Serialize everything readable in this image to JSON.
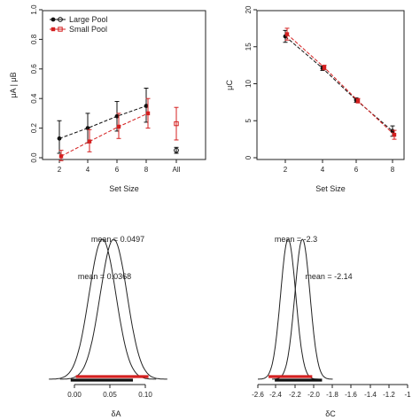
{
  "chart_data": [
    {
      "type": "line",
      "panel": "top-left",
      "xlabel": "Set Size",
      "ylabel": "μA | μB",
      "x_ticks": [
        "2",
        "4",
        "6",
        "8",
        "All"
      ],
      "y_ticks": [
        "0.0",
        "0.2",
        "0.4",
        "0.6",
        "0.8",
        "1.0"
      ],
      "ylim": [
        0,
        1
      ],
      "legend_position": "top-left",
      "series": [
        {
          "name": "Large Pool",
          "color": "#111111",
          "x": [
            2,
            4,
            6,
            8
          ],
          "y": [
            0.13,
            0.2,
            0.28,
            0.35
          ],
          "err_low": [
            0.03,
            0.1,
            0.18,
            0.24
          ],
          "err_high": [
            0.25,
            0.3,
            0.38,
            0.47
          ],
          "all": {
            "y": 0.05,
            "err_low": 0.03,
            "err_high": 0.07
          }
        },
        {
          "name": "Small Pool",
          "color": "#d42020",
          "x": [
            2,
            4,
            6,
            8
          ],
          "y": [
            0.01,
            0.11,
            0.21,
            0.3
          ],
          "err_low": [
            -0.02,
            0.04,
            0.13,
            0.2
          ],
          "err_high": [
            0.05,
            0.19,
            0.3,
            0.4
          ],
          "all": {
            "y": 0.23,
            "err_low": 0.12,
            "err_high": 0.34
          }
        }
      ]
    },
    {
      "type": "line",
      "panel": "top-right",
      "xlabel": "Set Size",
      "ylabel": "μC",
      "x_ticks": [
        "2",
        "4",
        "6",
        "8"
      ],
      "y_ticks": [
        "0",
        "5",
        "10",
        "15",
        "20"
      ],
      "ylim": [
        0,
        20
      ],
      "series": [
        {
          "color": "#111111",
          "x": [
            2,
            4,
            6,
            8
          ],
          "y": [
            16.4,
            12.1,
            7.8,
            3.6
          ],
          "err_low": [
            15.6,
            11.8,
            7.5,
            2.9
          ],
          "err_high": [
            17.2,
            12.4,
            8.1,
            4.3
          ]
        },
        {
          "color": "#d42020",
          "x": [
            2,
            4,
            6,
            8
          ],
          "y": [
            16.7,
            12.2,
            7.7,
            3.1
          ],
          "err_low": [
            15.9,
            11.9,
            7.4,
            2.5
          ],
          "err_high": [
            17.5,
            12.5,
            8.0,
            3.7
          ]
        }
      ]
    },
    {
      "type": "density",
      "panel": "bottom-left",
      "xlabel": "δA",
      "x_ticks": [
        "0.00",
        "0.05",
        "0.10"
      ],
      "xlim": [
        -0.01,
        0.115
      ],
      "annotations": [
        "mean = 0.0497",
        "mean = 0.0368"
      ],
      "curves": [
        {
          "mean": 0.0368,
          "sd": 0.0155
        },
        {
          "mean": 0.0497,
          "sd": 0.0155
        }
      ],
      "intervals": [
        {
          "color": "#d42020",
          "low": 0.006,
          "high": 0.09
        },
        {
          "color": "#111111",
          "low": 0.0,
          "high": 0.072
        }
      ]
    },
    {
      "type": "density",
      "panel": "bottom-right",
      "xlabel": "δC",
      "x_ticks": [
        "-2.6",
        "-2.4",
        "-2.2",
        "-2.0",
        "-1.8",
        "-1.6",
        "-1.4",
        "-1.2",
        "-1"
      ],
      "xlim": [
        -2.65,
        -1.0
      ],
      "annotations": [
        "mean = -2.3",
        "mean = -2.14"
      ],
      "curves": [
        {
          "mean": -2.3,
          "sd": 0.085
        },
        {
          "mean": -2.14,
          "sd": 0.085
        }
      ],
      "intervals": [
        {
          "color": "#d42020",
          "low": -2.52,
          "high": -2.03
        },
        {
          "color": "#111111",
          "low": -2.45,
          "high": -1.92
        }
      ]
    }
  ]
}
